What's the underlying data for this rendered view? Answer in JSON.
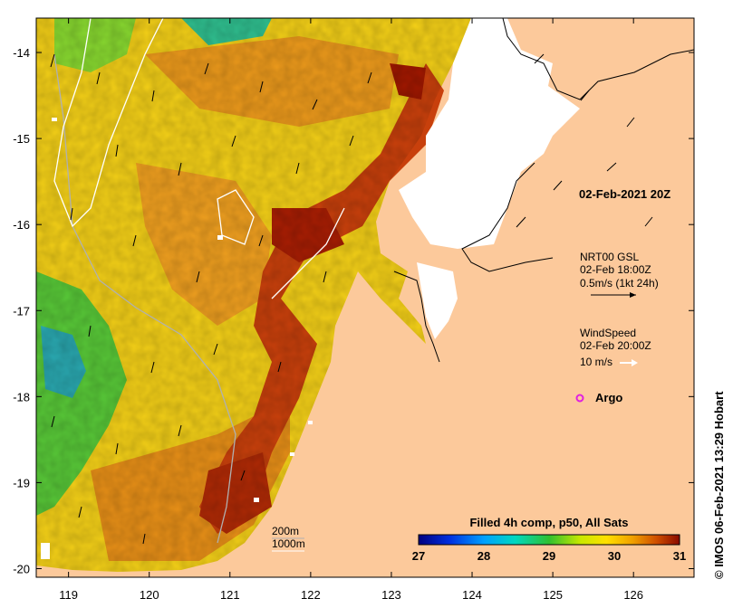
{
  "map": {
    "lon_ticks": [
      "119",
      "120",
      "121",
      "122",
      "123",
      "124",
      "125",
      "126"
    ],
    "lat_ticks": [
      "-14",
      "-15",
      "-16",
      "-17",
      "-18",
      "-19",
      "-20"
    ],
    "lon_range": [
      118.6,
      126.75
    ],
    "lat_range": [
      -20.1,
      -13.6
    ]
  },
  "annotations": {
    "date_label": "02-Feb-2021 20Z",
    "gsl_title": "NRT00 GSL",
    "gsl_time": "02-Feb 18:00Z",
    "gsl_scale": "0.5m/s (1kt 24h)",
    "wind_title": "WindSpeed",
    "wind_time": "02-Feb 20:00Z",
    "wind_scale": "10 m/s",
    "argo_label": "Argo",
    "contour_200": "200m",
    "contour_1000": "1000m"
  },
  "colorbar": {
    "title": "Filled 4h comp, p50, All Sats",
    "ticks": [
      "27",
      "28",
      "29",
      "30",
      "31"
    ],
    "range": [
      27,
      31
    ]
  },
  "credit": "© IMOS 06-Feb-2021 13:29 Hobart",
  "colors": {
    "land": "#fcc99b",
    "no_data": "#ffffff",
    "argo": "#e020e0"
  }
}
